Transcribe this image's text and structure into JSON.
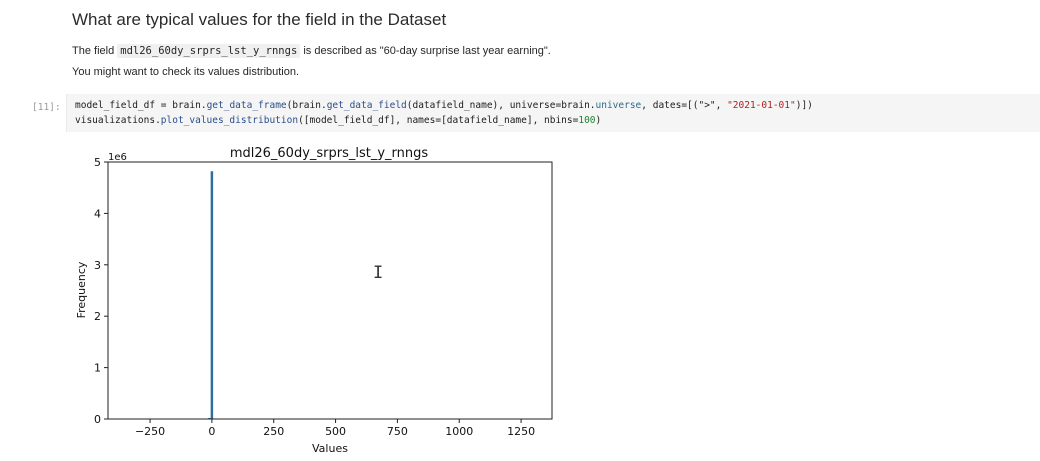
{
  "markdown": {
    "heading": "What are typical values for the field in the Dataset",
    "para1_prefix": "The field",
    "field_code": "mdl26_60dy_srprs_lst_y_rnngs",
    "para1_suffix": "is described as \"60-day surprise last year earning\".",
    "para2": "You might want to check its values distribution."
  },
  "code_cell": {
    "prompt": "[11]:",
    "line1": {
      "a": "model_field_df = brain.",
      "fn1": "get_data_frame",
      "b": "(brain.",
      "fn2": "get_data_field",
      "c": "(datafield_name), universe=brain.",
      "kw": "universe",
      "d": ", dates=[(\">\", ",
      "str": "\"2021-01-01\"",
      "e": ")])"
    },
    "line2": {
      "a": "visualizations.",
      "fn": "plot_values_distribution",
      "b": "([model_field_df], names=[datafield_name], nbins=",
      "num": "100",
      "c": ")"
    }
  },
  "chart_data": {
    "type": "bar",
    "title": "mdl26_60dy_srprs_lst_y_rnngs",
    "xlabel": "Values",
    "ylabel": "Frequency",
    "y_scale_label": "1e6",
    "xlim": [
      -420,
      1375
    ],
    "ylim": [
      0,
      5.0
    ],
    "x_ticks": [
      -250,
      0,
      250,
      500,
      750,
      1000,
      1250
    ],
    "y_ticks": [
      0,
      1,
      2,
      3,
      4,
      5
    ],
    "bar_color": "#2f6d9c",
    "bars": [
      {
        "x_start": -5,
        "x_end": 5,
        "value": 4.82
      },
      {
        "x_start": -15,
        "x_end": -5,
        "value": 0.02
      }
    ],
    "grid": false,
    "legend": "none"
  },
  "cursor": {
    "glyph": "I"
  }
}
